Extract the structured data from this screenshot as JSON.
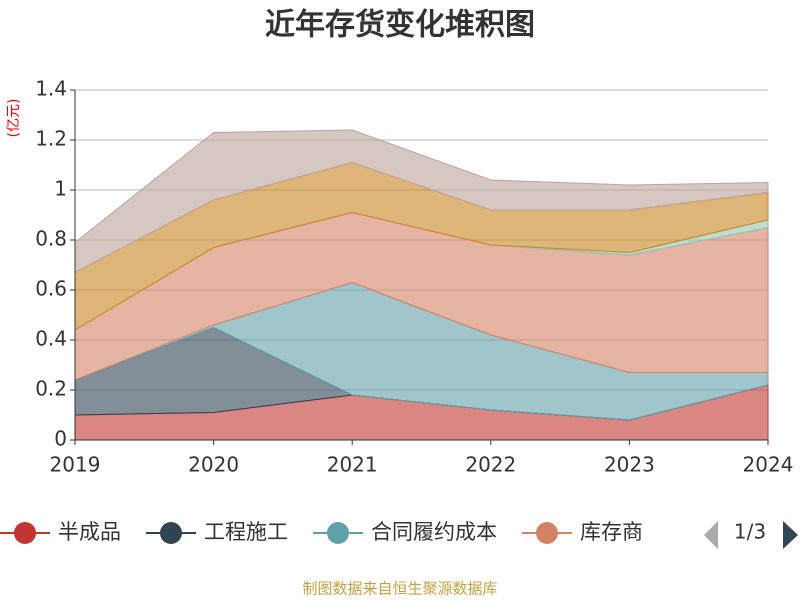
{
  "chart_data": {
    "type": "stacked_area",
    "title": "近年存货变化堆积图",
    "y_label": "(亿元)",
    "x": [
      "2019",
      "2020",
      "2021",
      "2022",
      "2023",
      "2024"
    ],
    "series": [
      {
        "name": "半成品",
        "color": "#c23531",
        "values": [
          0.1,
          0.11,
          0.18,
          0.12,
          0.08,
          0.22
        ]
      },
      {
        "name": "工程施工",
        "color": "#2f4554",
        "values": [
          0.14,
          0.34,
          0,
          0,
          0,
          0
        ]
      },
      {
        "name": "合同履约成本",
        "color": "#61a0a8",
        "values": [
          0,
          0.01,
          0.45,
          0.3,
          0.19,
          0.05
        ]
      },
      {
        "name": "库存商",
        "color": "#d48265",
        "values": [
          0.2,
          0.31,
          0.28,
          0.36,
          0.47,
          0.58
        ]
      },
      {
        "color": "#91c7ae",
        "values": [
          0,
          0,
          0,
          0,
          0.01,
          0.03
        ]
      },
      {
        "color": "#ca8622",
        "values": [
          0.23,
          0.19,
          0.2,
          0.14,
          0.17,
          0.11
        ]
      },
      {
        "color": "#bda29a",
        "values": [
          0.12,
          0.27,
          0.13,
          0.12,
          0.1,
          0.04
        ]
      }
    ],
    "ylim": [
      0,
      1.4
    ],
    "yticks": [
      0,
      0.2,
      0.4,
      0.6,
      0.8,
      1,
      1.2,
      1.4
    ],
    "grid": true,
    "legend_page": "1/3",
    "source": "制图数据来自恒生聚源数据库"
  }
}
